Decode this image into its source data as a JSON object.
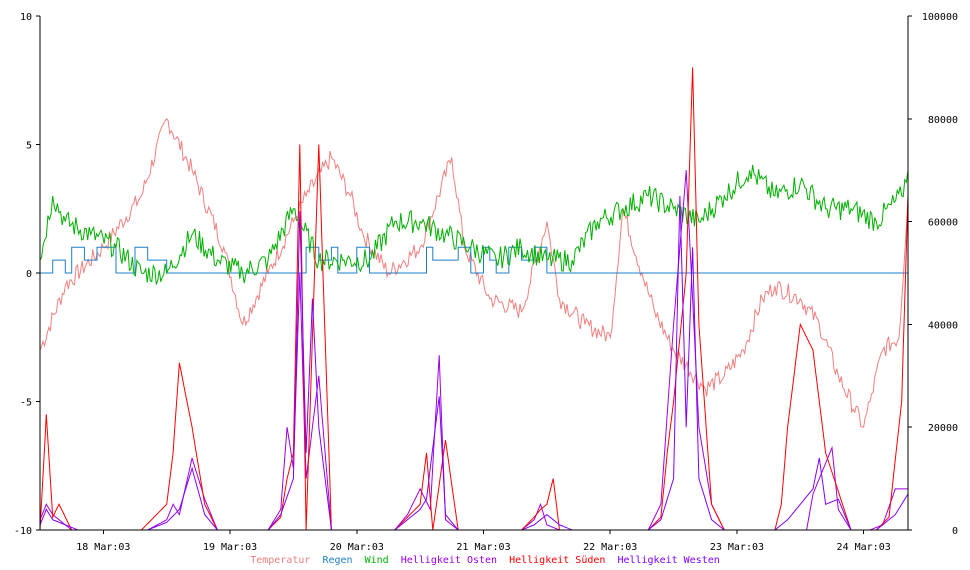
{
  "chart_data": {
    "type": "line",
    "left_axis": {
      "min": -10,
      "max": 10,
      "ticks": [
        10,
        5,
        0,
        -5,
        -10
      ],
      "tick_labels": [
        "10",
        "5",
        "0",
        "-5",
        "-10"
      ]
    },
    "right_axis": {
      "min": 0,
      "max": 100000,
      "ticks": [
        100000,
        80000,
        60000,
        40000,
        20000,
        0
      ],
      "tick_labels": [
        "100000",
        "80000",
        "60000",
        "40000",
        "20000",
        "0"
      ]
    },
    "x_axis": {
      "start": "17 Mar:03 12:00",
      "end": "24 Mar:03 12:00",
      "ticks": [
        0.5,
        1.5,
        2.5,
        3.5,
        4.5,
        5.5,
        6.5
      ],
      "tick_labels": [
        "18 Mar:03",
        "19 Mar:03",
        "20 Mar:03",
        "21 Mar:03",
        "22 Mar:03",
        "23 Mar:03",
        "24 Mar:03"
      ]
    },
    "grid": false,
    "legend_position": "bottom-center",
    "series": [
      {
        "name": "Temperatur",
        "axis": "left",
        "color": "#f08080",
        "x": [
          0,
          0.2,
          0.5,
          0.8,
          1.0,
          1.2,
          1.45,
          1.6,
          1.8,
          2.0,
          2.1,
          2.3,
          2.45,
          2.55,
          2.75,
          3.0,
          3.25,
          3.35,
          3.55,
          3.8,
          4.0,
          4.1,
          4.3,
          4.5,
          4.6,
          4.75,
          4.85,
          5.0,
          5.25,
          5.4,
          5.55,
          5.7,
          5.8,
          6.0,
          6.15,
          6.3,
          6.5,
          6.55,
          6.65,
          6.78,
          6.85
        ],
        "y": [
          -3,
          -0.5,
          1,
          3,
          6,
          4,
          1,
          -2,
          0,
          2,
          3,
          4.5,
          3,
          1.5,
          0,
          1,
          4.5,
          1,
          -1,
          -1.5,
          2,
          -1,
          -2,
          -2.5,
          2.5,
          0,
          -1.5,
          -3,
          -4.5,
          -4,
          -3,
          -1,
          -0.5,
          -1,
          -2,
          -4,
          -6,
          -5,
          -3,
          -2.5,
          3
        ]
      },
      {
        "name": "Regen",
        "axis": "left",
        "color": "#1e7fc9",
        "x": [
          0,
          0.1,
          0.2,
          0.25,
          0.35,
          0.45,
          0.6,
          0.75,
          0.85,
          1.0,
          1.8,
          2.05,
          2.1,
          2.2,
          2.3,
          2.35,
          2.5,
          2.6,
          2.95,
          3.05,
          3.1,
          3.3,
          3.4,
          3.5,
          3.55,
          3.6,
          3.7,
          3.8,
          3.9,
          4.0,
          4.1,
          4.5,
          6.85
        ],
        "y": [
          0,
          0.5,
          0,
          1,
          0.5,
          1,
          0,
          1,
          0.5,
          0,
          0,
          0,
          1,
          0.5,
          1,
          0,
          1,
          0,
          0,
          1,
          0.5,
          1,
          0,
          1,
          0.5,
          0,
          1,
          0.5,
          1,
          0,
          0,
          0,
          0
        ]
      },
      {
        "name": "Wind",
        "axis": "left",
        "color": "#00b000",
        "x": [
          0,
          0.1,
          0.2,
          0.4,
          0.6,
          0.8,
          1.0,
          1.2,
          1.4,
          1.6,
          1.8,
          2.0,
          2.2,
          2.4,
          2.6,
          2.8,
          3.0,
          3.2,
          3.4,
          3.6,
          3.8,
          4.0,
          4.2,
          4.4,
          4.6,
          4.8,
          5.0,
          5.2,
          5.4,
          5.6,
          5.8,
          6.0,
          6.2,
          6.4,
          6.6,
          6.8,
          6.85
        ],
        "y": [
          0.5,
          3,
          2,
          1.5,
          1,
          0,
          0,
          1.5,
          0.5,
          0,
          0.5,
          2.5,
          0.5,
          0.5,
          0.5,
          2,
          2,
          1.5,
          1,
          0.5,
          1,
          0.5,
          0.5,
          2,
          2.5,
          3,
          2.5,
          2,
          3,
          4,
          3,
          3.5,
          2.5,
          2.5,
          2,
          3,
          4
        ]
      },
      {
        "name": "Helligkeit Osten",
        "axis": "right",
        "color": "#a000e0",
        "x": [
          0,
          0.05,
          0.1,
          0.25,
          0.85,
          1.0,
          1.05,
          1.1,
          1.2,
          1.3,
          1.4,
          1.8,
          1.9,
          1.95,
          2.0,
          2.05,
          2.1,
          2.2,
          2.3,
          2.8,
          2.9,
          3.0,
          3.08,
          3.15,
          3.2,
          3.3,
          3.8,
          3.9,
          3.95,
          4.0,
          4.1,
          4.2,
          4.8,
          4.9,
          5.0,
          5.1,
          5.2,
          5.3,
          5.4,
          5.5,
          5.6,
          5.8,
          6.05,
          6.1,
          6.25,
          6.3,
          6.4,
          6.55,
          6.65,
          6.75,
          6.85
        ],
        "y": [
          2000,
          5000,
          3000,
          0,
          0,
          2000,
          5000,
          3000,
          14000,
          6000,
          0,
          0,
          4000,
          20000,
          12000,
          50000,
          10000,
          30000,
          0,
          0,
          3000,
          8000,
          4000,
          34000,
          2000,
          0,
          0,
          2000,
          5000,
          1000,
          0,
          0,
          0,
          5000,
          40000,
          70000,
          20000,
          5000,
          0,
          0,
          0,
          0,
          0,
          7000,
          16000,
          4000,
          0,
          0,
          1000,
          8000,
          8000
        ]
      },
      {
        "name": "Helligkeit Süden",
        "axis": "left",
        "color": "#ff0000",
        "x": [
          0,
          0.05,
          0.1,
          0.15,
          0.25,
          0.4,
          0.8,
          0.9,
          1.0,
          1.05,
          1.1,
          1.2,
          1.3,
          1.4,
          1.8,
          1.9,
          1.95,
          2.0,
          2.05,
          2.1,
          2.2,
          2.3,
          2.8,
          2.9,
          3.0,
          3.05,
          3.1,
          3.2,
          3.3,
          3.8,
          3.9,
          3.95,
          4.0,
          4.05,
          4.1,
          4.2,
          4.8,
          4.9,
          4.95,
          5.0,
          5.1,
          5.15,
          5.2,
          5.3,
          5.4,
          5.5,
          5.6,
          5.8,
          5.85,
          5.9,
          6.0,
          6.1,
          6.2,
          6.4,
          6.5,
          6.6,
          6.7,
          6.8,
          6.85
        ],
        "y": [
          -10,
          -5.5,
          -9.5,
          -9,
          -10,
          -10,
          -10,
          -9.5,
          -9,
          -7,
          -3.5,
          -6,
          -9,
          -10,
          -10,
          -9.5,
          -8,
          -7,
          5,
          -10,
          5,
          -10,
          -10,
          -9.5,
          -9,
          -7,
          -10,
          -6.5,
          -10,
          -10,
          -9.5,
          -9.2,
          -9,
          -8,
          -10,
          -10,
          -10,
          -9.5,
          -7,
          -5,
          0,
          8,
          -2,
          -9,
          -10,
          -10,
          -10,
          -10,
          -9,
          -6,
          -2,
          -3,
          -7,
          -10,
          -10,
          -10,
          -9.5,
          -5,
          3
        ]
      },
      {
        "name": "Helligkeit Westen",
        "axis": "right",
        "color": "#8000ff",
        "x": [
          0,
          0.05,
          0.1,
          0.2,
          0.3,
          0.85,
          1.0,
          1.1,
          1.2,
          1.3,
          1.4,
          1.8,
          1.9,
          2.0,
          2.05,
          2.1,
          2.15,
          2.2,
          2.3,
          2.8,
          2.9,
          3.0,
          3.05,
          3.15,
          3.2,
          3.3,
          3.8,
          3.9,
          4.0,
          4.1,
          4.2,
          4.8,
          4.9,
          5.0,
          5.05,
          5.1,
          5.15,
          5.2,
          5.3,
          5.4,
          5.8,
          5.9,
          6.0,
          6.1,
          6.15,
          6.2,
          6.3,
          6.4,
          6.6,
          6.75,
          6.85
        ],
        "y": [
          1000,
          4000,
          2000,
          1000,
          0,
          0,
          1500,
          4000,
          12000,
          3000,
          0,
          0,
          3000,
          10000,
          62000,
          15000,
          45000,
          20000,
          0,
          0,
          2000,
          4000,
          6000,
          26000,
          3000,
          0,
          0,
          1000,
          3000,
          1000,
          0,
          0,
          2000,
          10000,
          65000,
          20000,
          55000,
          10000,
          2000,
          0,
          0,
          2000,
          5000,
          8000,
          14000,
          5000,
          6000,
          0,
          0,
          3000,
          7000
        ]
      }
    ]
  }
}
